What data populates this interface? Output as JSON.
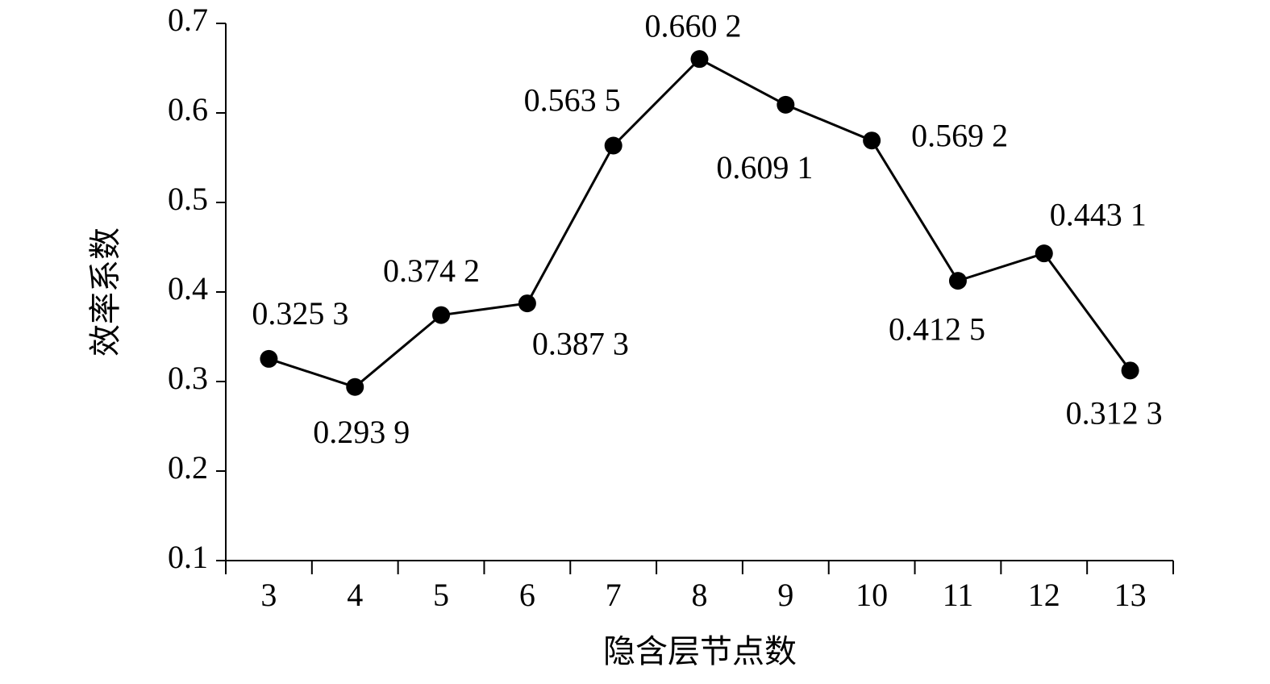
{
  "chart_data": {
    "type": "line",
    "x_label": "隐含层节点数",
    "y_label": "效率系数",
    "categories": [
      "3",
      "4",
      "5",
      "6",
      "7",
      "8",
      "9",
      "10",
      "11",
      "12",
      "13"
    ],
    "series": [
      {
        "color": "#000000",
        "values": [
          0.3253,
          0.2939,
          0.3742,
          0.3873,
          0.5635,
          0.6602,
          0.6091,
          0.5692,
          0.4125,
          0.4431,
          0.3123
        ],
        "value_labels": [
          "0.325 3",
          "0.293 9",
          "0.374 2",
          "0.387 3",
          "0.563 5",
          "0.660 2",
          "0.609 1",
          "0.569 2",
          "0.412 5",
          "0.443 1",
          "0.312 3"
        ]
      }
    ],
    "ylim": [
      0.1,
      0.7
    ],
    "yticks": [
      0.1,
      0.2,
      0.3,
      0.4,
      0.5,
      0.6,
      0.7
    ],
    "grid": false
  }
}
